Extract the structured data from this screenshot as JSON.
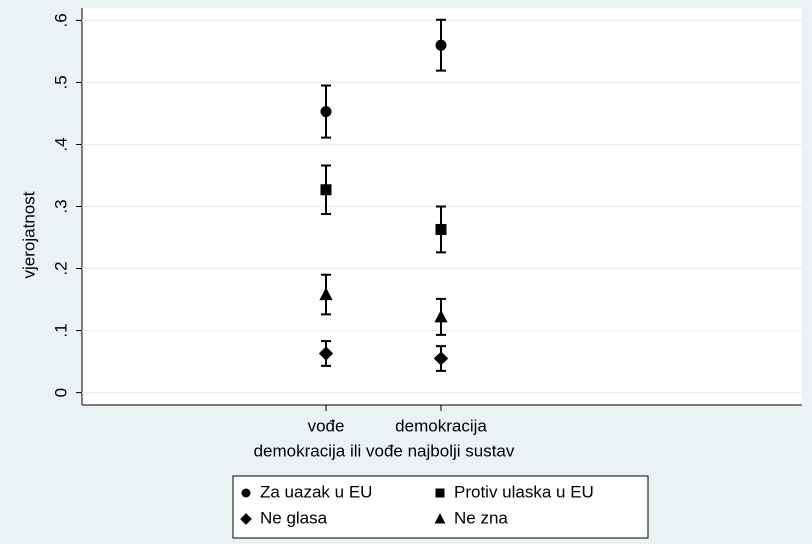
{
  "chart_data": {
    "type": "errorbar_scatter",
    "ylabel": "vjerojatnost",
    "xlabel": "demokracija ili vođe najbolji sustav",
    "categories": [
      "vođe",
      "demokracija"
    ],
    "ylim": [
      -0.02,
      0.62
    ],
    "yticks": [
      0,
      {
        "value": 0.1,
        "label": ".1"
      },
      {
        "value": 0.2,
        "label": ".2"
      },
      {
        "value": 0.3,
        "label": ".3"
      },
      {
        "value": 0.4,
        "label": ".4"
      },
      {
        "value": 0.5,
        "label": ".5"
      },
      {
        "value": 0.6,
        "label": ".6"
      }
    ],
    "grid": true,
    "legend": "bottom",
    "series": [
      {
        "name": "Za uazak u EU",
        "color": "#000000",
        "marker": "circle",
        "values": [
          0.453,
          0.56
        ],
        "errors": [
          0.042,
          0.041
        ]
      },
      {
        "name": "Protiv ulaska u EU",
        "color": "#000000",
        "marker": "square",
        "values": [
          0.327,
          0.263
        ],
        "errors": [
          0.039,
          0.037
        ]
      },
      {
        "name": "Ne glasa",
        "color": "#000000",
        "marker": "diamond",
        "values": [
          0.063,
          0.055
        ],
        "errors": [
          0.02,
          0.02
        ]
      },
      {
        "name": "Ne zna",
        "color": "#000000",
        "marker": "triangle",
        "values": [
          0.158,
          0.122
        ],
        "errors": [
          0.032,
          0.029
        ]
      }
    ]
  }
}
